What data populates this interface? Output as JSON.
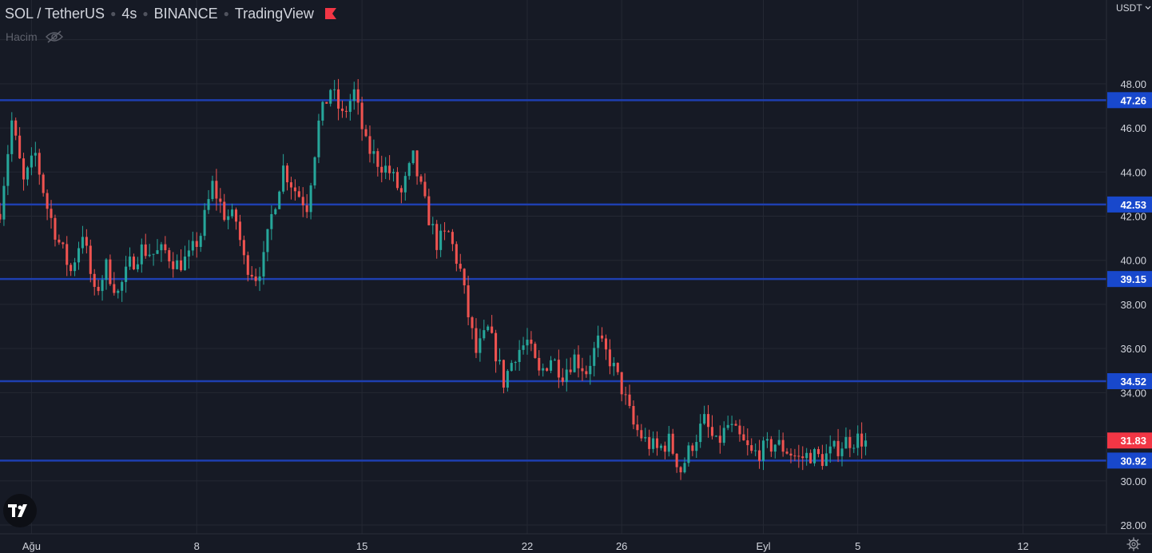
{
  "header": {
    "symbol": "SOL / TetherUS",
    "interval": "4s",
    "exchange": "BINANCE",
    "source": "TradingView",
    "flag_color": "#f23645"
  },
  "volume_indicator": {
    "label": "Hacim",
    "icon": "eye-off-icon"
  },
  "price_axis": {
    "currency": "USDT",
    "icon": "chevron-down-icon"
  },
  "colors": {
    "background": "#161a25",
    "grid": "#242833",
    "up": "#26a69a",
    "down": "#ef5350",
    "level_line": "#1e3fb0",
    "level_label_bg": "#1848cc",
    "last_price_bg": "#f23645",
    "axis_text": "#d1d4dc"
  },
  "chart_data": {
    "type": "candlestick",
    "ylim": [
      27.6,
      51.8
    ],
    "y_ticks": [
      28,
      30,
      32,
      34,
      36,
      38,
      40,
      42,
      44,
      46,
      48
    ],
    "y_tick_labels": [
      "28.00",
      "30.00",
      "",
      "34.00",
      "36.00",
      "38.00",
      "40.00",
      "42.00",
      "44.00",
      "46.00",
      "48.00"
    ],
    "x_range_bars": [
      0,
      281
    ],
    "x_ticks": [
      {
        "bar": 8,
        "label": "Ağu"
      },
      {
        "bar": 50,
        "label": "8"
      },
      {
        "bar": 92,
        "label": "15"
      },
      {
        "bar": 134,
        "label": "22"
      },
      {
        "bar": 158,
        "label": "26"
      },
      {
        "bar": 194,
        "label": "Eyl"
      },
      {
        "bar": 218,
        "label": "5"
      },
      {
        "bar": 260,
        "label": "12"
      }
    ],
    "horizontal_levels": [
      47.26,
      42.53,
      39.15,
      34.52,
      30.92
    ],
    "level_labels": [
      "47.26",
      "42.53",
      "39.15",
      "34.52",
      "30.92"
    ],
    "last_price": 31.83,
    "last_price_label": "31.83",
    "grid": true,
    "close_path": [
      [
        0,
        42.3
      ],
      [
        3,
        46.3
      ],
      [
        6,
        43.5
      ],
      [
        9,
        44.8
      ],
      [
        12,
        42.4
      ],
      [
        15,
        40.8
      ],
      [
        18,
        39.5
      ],
      [
        21,
        41.3
      ],
      [
        24,
        38.4
      ],
      [
        27,
        39.7
      ],
      [
        30,
        38.5
      ],
      [
        33,
        39.8
      ],
      [
        36,
        40.5
      ],
      [
        39,
        40.3
      ],
      [
        42,
        40.4
      ],
      [
        45,
        39.8
      ],
      [
        48,
        40.1
      ],
      [
        51,
        41.2
      ],
      [
        54,
        43.4
      ],
      [
        57,
        42.1
      ],
      [
        60,
        41.8
      ],
      [
        62,
        40.0
      ],
      [
        65,
        39.3
      ],
      [
        67,
        40.0
      ],
      [
        69,
        42.0
      ],
      [
        72,
        44.2
      ],
      [
        75,
        43.2
      ],
      [
        78,
        42.5
      ],
      [
        81,
        46.2
      ],
      [
        84,
        47.8
      ],
      [
        87,
        46.5
      ],
      [
        90,
        47.6
      ],
      [
        93,
        45.2
      ],
      [
        96,
        44.5
      ],
      [
        99,
        44.0
      ],
      [
        102,
        43.0
      ],
      [
        105,
        44.6
      ],
      [
        108,
        42.5
      ],
      [
        111,
        40.8
      ],
      [
        114,
        41.2
      ],
      [
        117,
        39.5
      ],
      [
        119,
        37.5
      ],
      [
        121,
        35.8
      ],
      [
        124,
        36.8
      ],
      [
        126,
        35.8
      ],
      [
        128,
        34.5
      ],
      [
        131,
        35.8
      ],
      [
        134,
        36.3
      ],
      [
        137,
        34.8
      ],
      [
        140,
        35.6
      ],
      [
        143,
        34.9
      ],
      [
        146,
        35.6
      ],
      [
        149,
        35.0
      ],
      [
        152,
        36.3
      ],
      [
        155,
        35.5
      ],
      [
        158,
        34.2
      ],
      [
        161,
        32.5
      ],
      [
        164,
        31.8
      ],
      [
        167,
        31.4
      ],
      [
        170,
        31.8
      ],
      [
        173,
        30.5
      ],
      [
        176,
        31.7
      ],
      [
        179,
        32.7
      ],
      [
        182,
        31.6
      ],
      [
        185,
        32.5
      ],
      [
        188,
        31.9
      ],
      [
        191,
        31.2
      ],
      [
        194,
        31.4
      ],
      [
        197,
        31.7
      ],
      [
        200,
        31.4
      ],
      [
        203,
        31.0
      ],
      [
        206,
        31.2
      ],
      [
        209,
        31.0
      ],
      [
        212,
        31.4
      ],
      [
        215,
        31.8
      ],
      [
        218,
        31.9
      ],
      [
        220,
        31.83
      ]
    ]
  }
}
